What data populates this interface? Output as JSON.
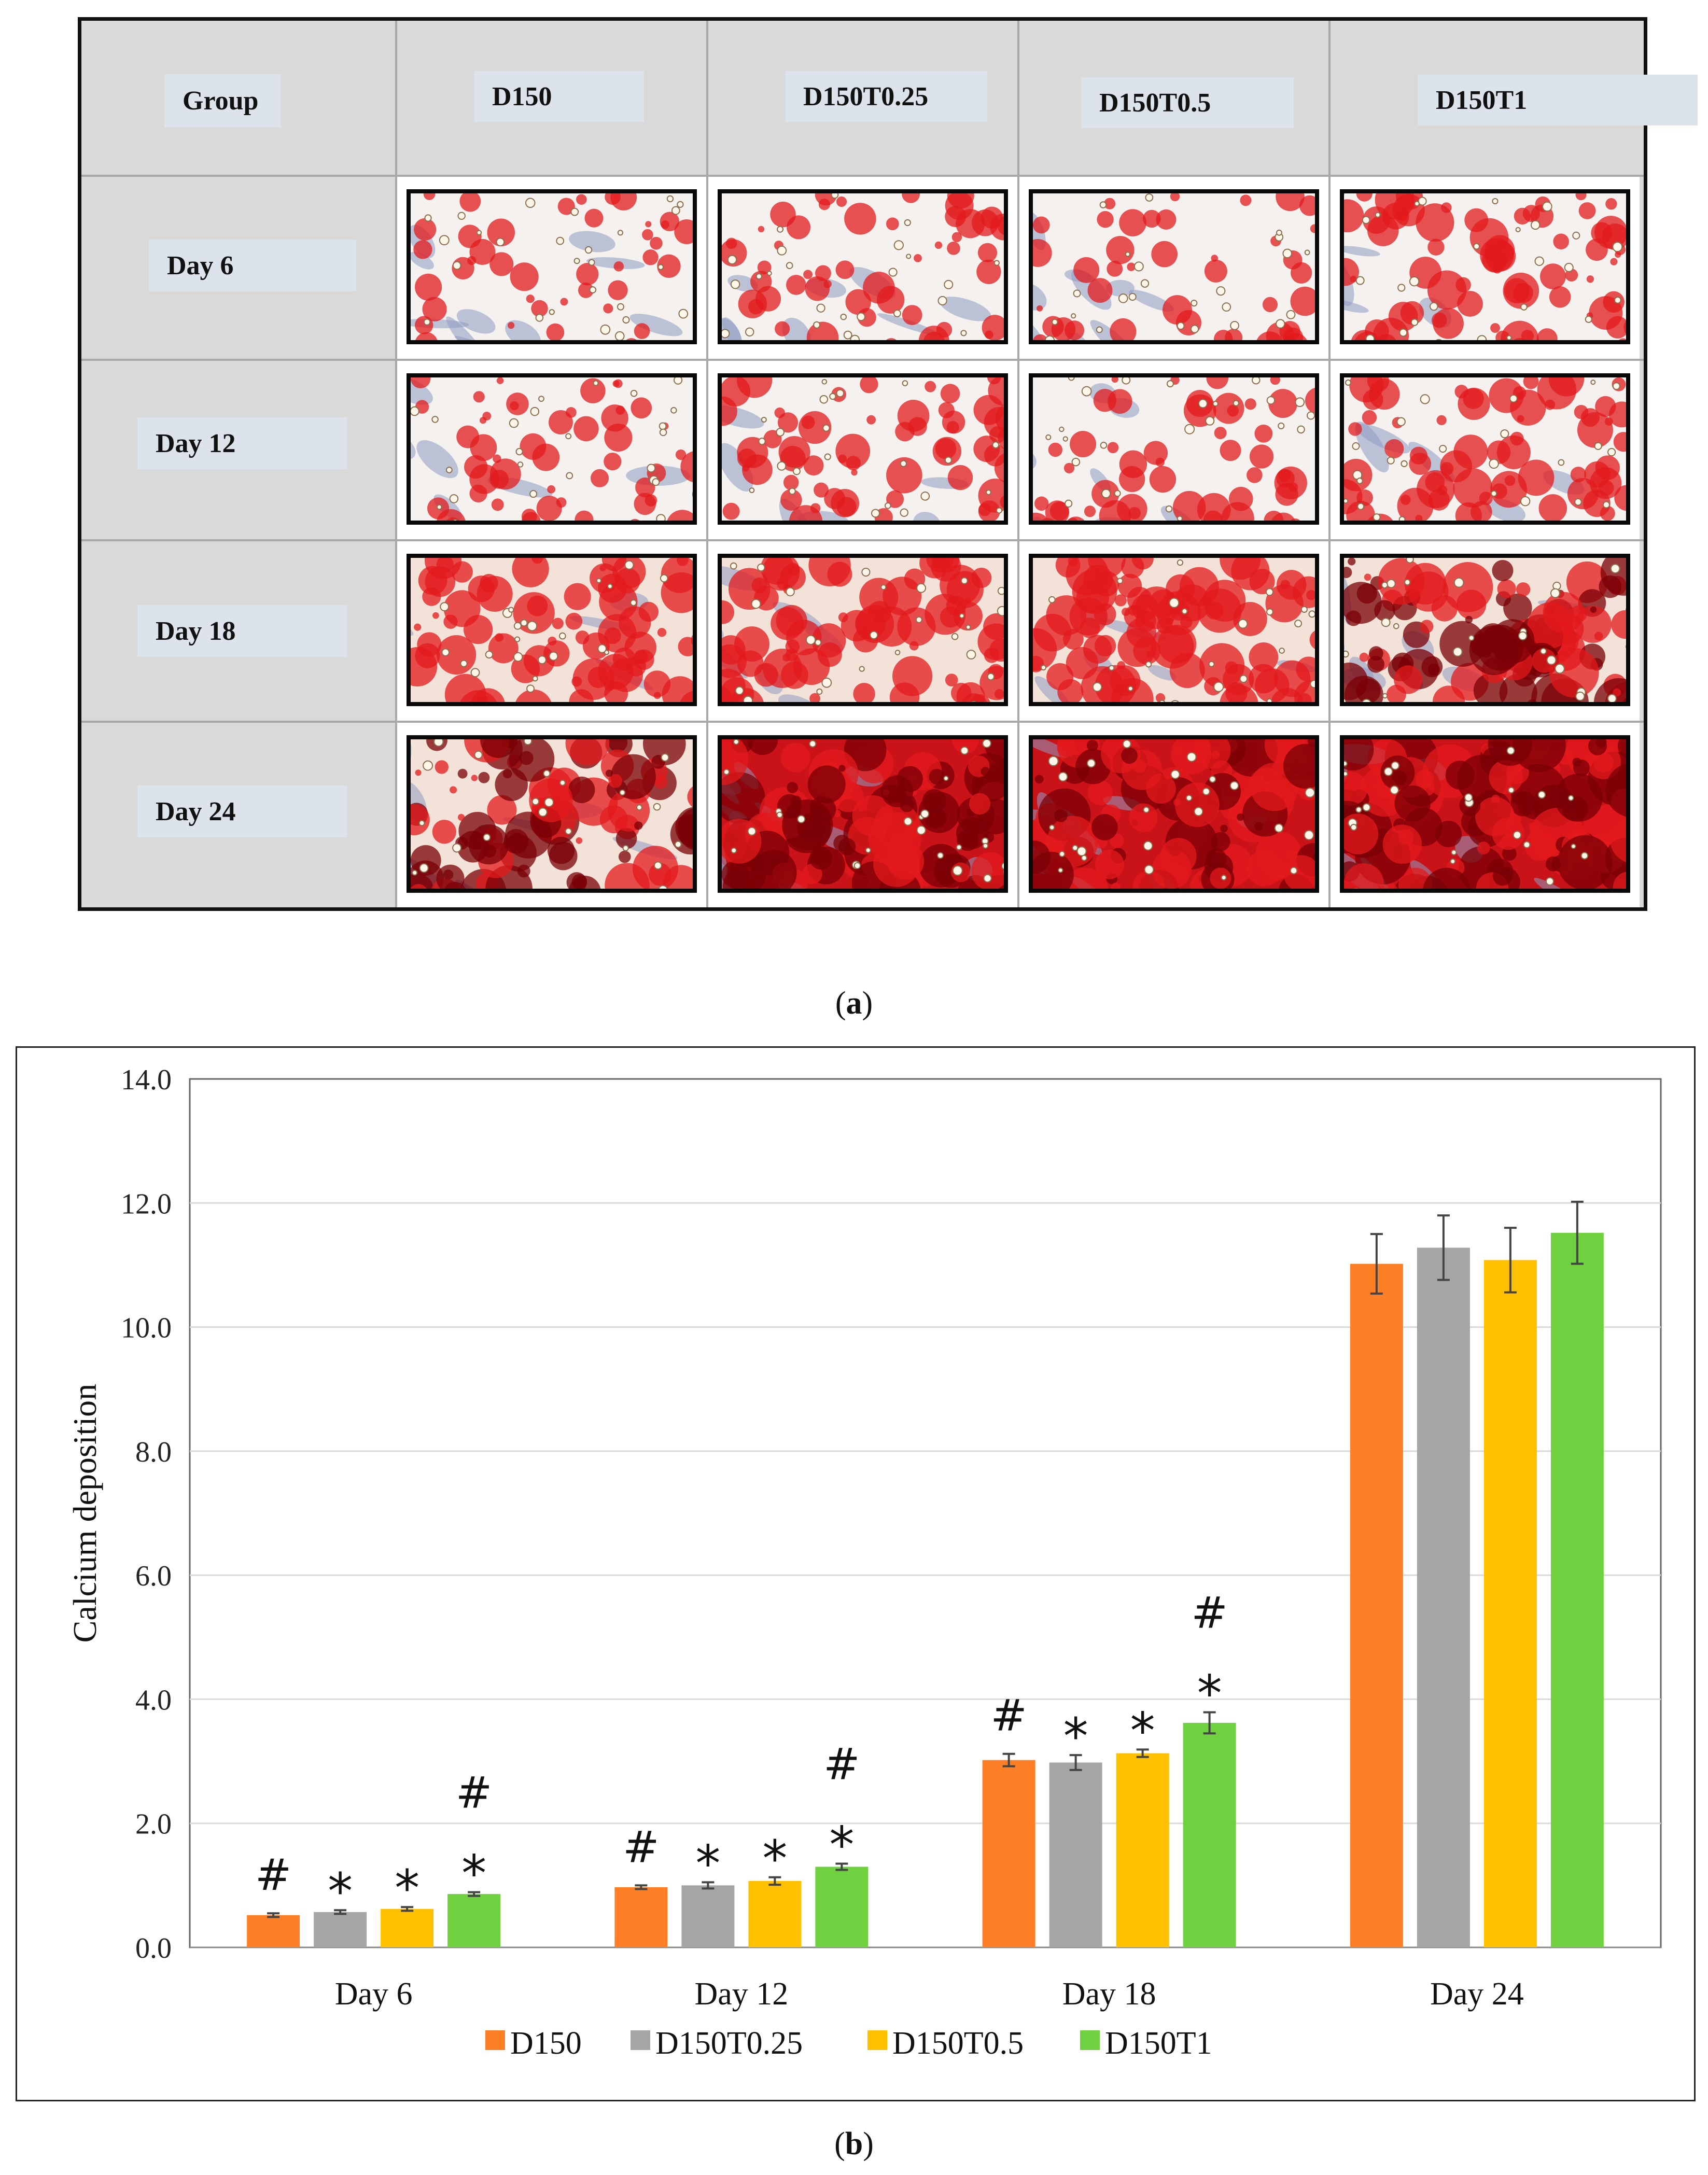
{
  "panel_a": {
    "caption_letter": "a",
    "header": [
      "Group",
      "D150",
      "D150T0.25",
      "D150T0.5",
      "D150T1"
    ],
    "rows": [
      "Day 6",
      "Day 12",
      "Day 18",
      "Day 24"
    ],
    "stain_levels": [
      [
        0.25,
        0.35,
        0.25,
        0.55
      ],
      [
        0.35,
        0.45,
        0.4,
        0.55
      ],
      [
        0.6,
        0.62,
        0.7,
        0.85
      ],
      [
        0.8,
        0.92,
        0.92,
        1.0
      ]
    ],
    "colors": {
      "stain_red": "#e31a1c",
      "stain_dark": "#7a0006",
      "cell_blue": "#8e9ac2",
      "background": "#f4f1ee"
    }
  },
  "panel_b": {
    "caption_letter": "b"
  },
  "chart_data": {
    "type": "bar",
    "title": "",
    "xlabel": "",
    "ylabel": "Calcium deposition",
    "ylim": [
      0,
      14
    ],
    "yticks": [
      "0.0",
      "2.0",
      "4.0",
      "6.0",
      "8.0",
      "10.0",
      "12.0",
      "14.0"
    ],
    "grid": true,
    "legend_position": "bottom-center",
    "categories": [
      "Day 6",
      "Day 12",
      "Day 18",
      "Day 24"
    ],
    "series": [
      {
        "name": "D150",
        "color": "#ff7f27",
        "values": [
          0.52,
          0.97,
          3.02,
          11.02
        ],
        "errors": [
          0.03,
          0.03,
          0.1,
          0.48
        ],
        "annotations": [
          [
            "#"
          ],
          [
            "#"
          ],
          [
            "#"
          ],
          []
        ]
      },
      {
        "name": "D150T0.25",
        "color": "#a5a5a5",
        "values": [
          0.57,
          1.0,
          2.98,
          11.28
        ],
        "errors": [
          0.03,
          0.05,
          0.12,
          0.52
        ],
        "annotations": [
          [
            "*"
          ],
          [
            "*"
          ],
          [
            "*"
          ],
          []
        ]
      },
      {
        "name": "D150T0.5",
        "color": "#ffc000",
        "values": [
          0.62,
          1.07,
          3.13,
          11.08
        ],
        "errors": [
          0.03,
          0.06,
          0.06,
          0.52
        ],
        "annotations": [
          [
            "*"
          ],
          [
            "*"
          ],
          [
            "*"
          ],
          []
        ]
      },
      {
        "name": "D150T1",
        "color": "#70d140",
        "values": [
          0.86,
          1.3,
          3.62,
          11.52
        ],
        "errors": [
          0.03,
          0.05,
          0.17,
          0.5
        ],
        "annotations": [
          [
            "*",
            "#"
          ],
          [
            "*",
            "#"
          ],
          [
            "*",
            "#"
          ],
          []
        ]
      }
    ]
  }
}
